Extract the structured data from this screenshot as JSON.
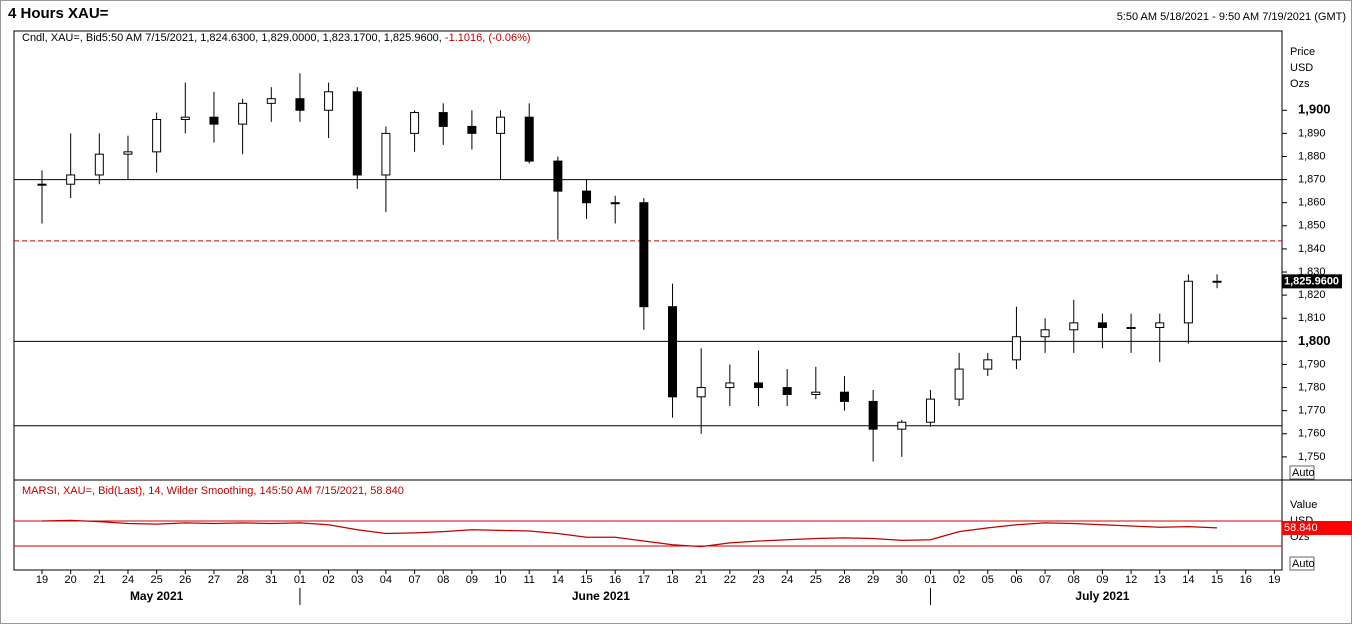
{
  "chart_data": [
    {
      "type": "candlestick",
      "title": "4 Hours XAU=",
      "subtitle": "5:50 AM 5/18/2021 - 9:50 AM 7/19/2021 (GMT)",
      "legend_text": "Cndl, XAU=, Bid5:50 AM 7/15/2021, 1,824.6300, 1,829.0000, 1,823.1700, 1,825.9600,",
      "legend_change": "-1.1016, (-0.06%)",
      "axis_labels": [
        "Price",
        "USD",
        "Ozs"
      ],
      "auto_label": "Auto",
      "ylim": [
        1740,
        1934.3
      ],
      "yticks": [
        {
          "value": 1750,
          "label": "1,750"
        },
        {
          "value": 1760,
          "label": "1,760"
        },
        {
          "value": 1770,
          "label": "1,770"
        },
        {
          "value": 1780,
          "label": "1,780"
        },
        {
          "value": 1790,
          "label": "1,790"
        },
        {
          "value": 1800,
          "label": "1,800"
        },
        {
          "value": 1810,
          "label": "1,810"
        },
        {
          "value": 1820,
          "label": "1,820"
        },
        {
          "value": 1830,
          "label": "1,830"
        },
        {
          "value": 1840,
          "label": "1,840"
        },
        {
          "value": 1850,
          "label": "1,850"
        },
        {
          "value": 1860,
          "label": "1,860"
        },
        {
          "value": 1870,
          "label": "1,870"
        },
        {
          "value": 1880,
          "label": "1,880"
        },
        {
          "value": 1890,
          "label": "1,890"
        },
        {
          "value": 1900,
          "label": "1,900"
        }
      ],
      "hlines": [
        1870,
        1800,
        1763.5
      ],
      "dashed_hline": 1843.5,
      "last_price": {
        "value": 1825.96,
        "label": "1,825.9600"
      },
      "categories": [
        "19",
        "20",
        "21",
        "24",
        "25",
        "26",
        "27",
        "28",
        "31",
        "01",
        "02",
        "03",
        "04",
        "07",
        "08",
        "09",
        "10",
        "11",
        "14",
        "15",
        "16",
        "17",
        "18",
        "21",
        "22",
        "23",
        "24",
        "25",
        "28",
        "29",
        "30",
        "01",
        "02",
        "05",
        "06",
        "07",
        "08",
        "09",
        "12",
        "13",
        "14",
        "15",
        "16",
        "19"
      ],
      "months": [
        "May 2021",
        "June 2021",
        "July 2021"
      ],
      "month_starts": [
        0,
        9,
        31
      ],
      "open": [
        1868,
        1868,
        1872,
        1881,
        1882,
        1896,
        1897,
        1894,
        1903,
        1905,
        1900,
        1908,
        1872,
        1890,
        1899,
        1893,
        1890,
        1897,
        1878,
        1865,
        1860,
        1860,
        1815,
        1776,
        1780,
        1782,
        1780,
        1777,
        1778,
        1774,
        1762,
        1765,
        1775,
        1788,
        1792,
        1802,
        1805,
        1808,
        1806,
        1806,
        1808,
        1826,
        null,
        null
      ],
      "high": [
        1874,
        1890,
        1890,
        1889,
        1899,
        1912,
        1908,
        1905,
        1910,
        1916,
        1912,
        1910,
        1893,
        1900,
        1903,
        1900,
        1900,
        1903,
        1880,
        1870,
        1863,
        1862,
        1825,
        1797,
        1790,
        1796,
        1788,
        1789,
        1785,
        1779,
        1766,
        1779,
        1795,
        1795,
        1815,
        1810,
        1818,
        1812,
        1812,
        1812,
        1829,
        1829,
        null,
        null
      ],
      "low": [
        1851,
        1862,
        1868,
        1870,
        1873,
        1890,
        1886,
        1881,
        1895,
        1895,
        1888,
        1866,
        1856,
        1882,
        1885,
        1883,
        1870,
        1877,
        1844,
        1853,
        1851,
        1805,
        1767,
        1760,
        1772,
        1772,
        1772,
        1775,
        1770,
        1748,
        1750,
        1763,
        1772,
        1785,
        1788,
        1795,
        1795,
        1797,
        1795,
        1791,
        1799,
        1823,
        null,
        null
      ],
      "close": [
        1868,
        1872,
        1881,
        1882,
        1896,
        1897,
        1894,
        1903,
        1905,
        1900,
        1908,
        1872,
        1890,
        1899,
        1893,
        1890,
        1897,
        1878,
        1865,
        1860,
        1860,
        1815,
        1776,
        1780,
        1782,
        1780,
        1777,
        1778,
        1774,
        1762,
        1765,
        1775,
        1788,
        1792,
        1802,
        1805,
        1808,
        1806,
        1806,
        1808,
        1826,
        1826,
        null,
        null
      ]
    },
    {
      "type": "line",
      "title": "MARSI, XAU=, Bid(Last),  14, Wilder Smoothing, 145:50 AM 7/15/2021, 58.840",
      "axis_labels": [
        "Value",
        "USD",
        "Ozs"
      ],
      "auto_label": "Auto",
      "color": "#c00000",
      "ylim": [
        -8.4,
        135.6
      ],
      "hlines": [
        70,
        30
      ],
      "last_value": {
        "value": 58.84,
        "label": "58.840"
      },
      "values": [
        70,
        71,
        69,
        66,
        65,
        67,
        66,
        67,
        66,
        67,
        64,
        56,
        50,
        51,
        53,
        56,
        55,
        54,
        50,
        44,
        44,
        38,
        32,
        29,
        35,
        38,
        40,
        42,
        43,
        42,
        39,
        40,
        53,
        59,
        64,
        67,
        66,
        64,
        62,
        60,
        61,
        59,
        null,
        null
      ]
    }
  ]
}
